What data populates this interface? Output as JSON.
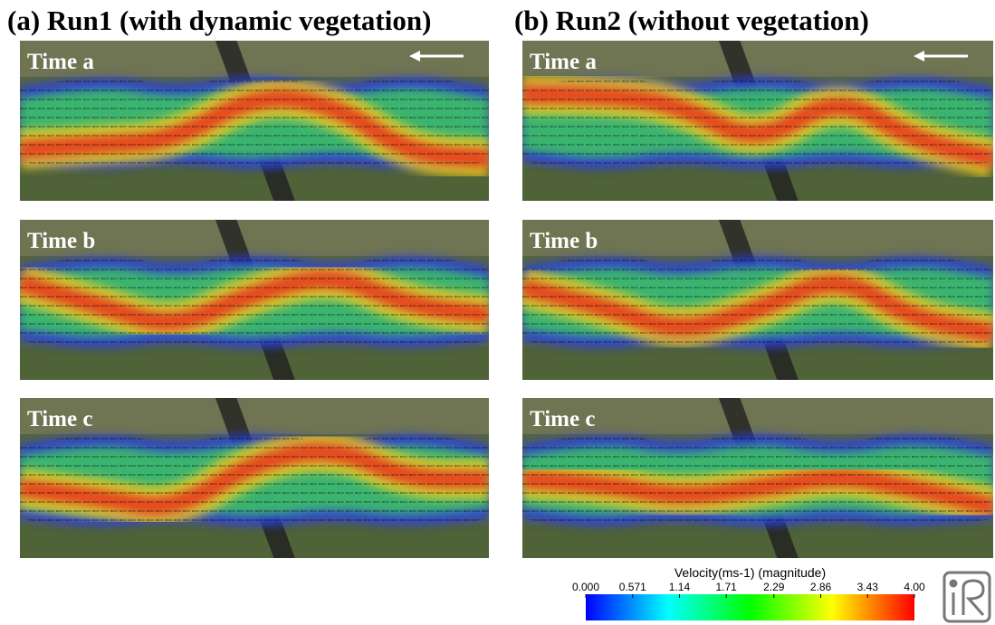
{
  "panels": [
    {
      "title": "(a) Run1 (with dynamic vegetation)",
      "frames": [
        {
          "label": "Time a"
        },
        {
          "label": "Time b"
        },
        {
          "label": "Time c"
        }
      ]
    },
    {
      "title": "(b) Run2 (without vegetation)",
      "frames": [
        {
          "label": "Time a"
        },
        {
          "label": "Time b"
        },
        {
          "label": "Time c"
        }
      ]
    }
  ],
  "colorbar": {
    "title": "Velocity(ms-1) (magnitude)",
    "lim": [
      0,
      4
    ],
    "ticks": [
      {
        "value": 0,
        "label": "0.000"
      },
      0.571,
      1.14,
      1.71,
      2.29,
      2.86,
      3.43,
      {
        "value": 4,
        "label": "4.00"
      }
    ],
    "colors": [
      "#0000ff",
      "#00ffff",
      "#00ff00",
      "#ffff00",
      "#ff0000"
    ]
  }
}
